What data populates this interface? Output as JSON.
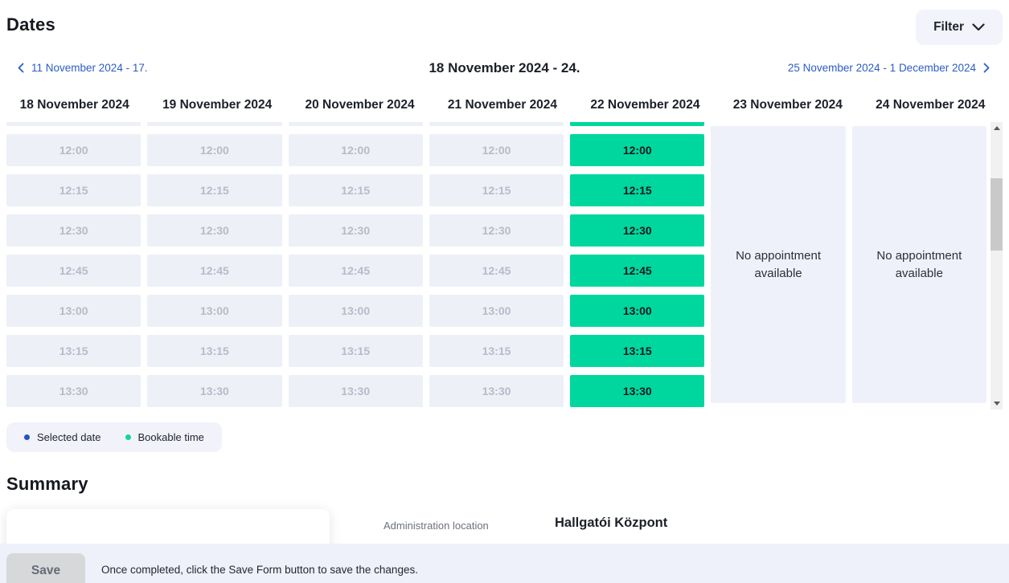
{
  "page": {
    "title": "Dates",
    "summary_title": "Summary"
  },
  "filter": {
    "label": "Filter"
  },
  "week_nav": {
    "prev_label": "11 November 2024 - 17.",
    "current_label": "18 November 2024 - 24.",
    "next_label": "25 November 2024 - 1 December 2024"
  },
  "calendar": {
    "times": [
      "12:00",
      "12:15",
      "12:30",
      "12:45",
      "13:00",
      "13:15",
      "13:30"
    ],
    "no_appointment_text": "No appointment available",
    "days": [
      {
        "label": "18 November 2024",
        "state": "disabled"
      },
      {
        "label": "19 November 2024",
        "state": "disabled"
      },
      {
        "label": "20 November 2024",
        "state": "disabled"
      },
      {
        "label": "21 November 2024",
        "state": "disabled"
      },
      {
        "label": "22 November 2024",
        "state": "bookable"
      },
      {
        "label": "23 November 2024",
        "state": "empty"
      },
      {
        "label": "24 November 2024",
        "state": "empty"
      }
    ]
  },
  "legend": {
    "items": [
      {
        "label": "Selected date",
        "color": "#2353c3"
      },
      {
        "label": "Bookable time",
        "color": "#15d3a4"
      }
    ]
  },
  "summary": {
    "fields": [
      {
        "label": "Administration location",
        "value": "Hallgatói Központ"
      }
    ]
  },
  "footer": {
    "save_label": "Save",
    "note": "Once completed, click the Save Form button to save the changes."
  },
  "colors": {
    "bookable_slot": "#00d79e",
    "disabled_slot": "#eef0f8",
    "link_blue": "#2b5cc8",
    "footer_bg": "#eef0fa"
  }
}
